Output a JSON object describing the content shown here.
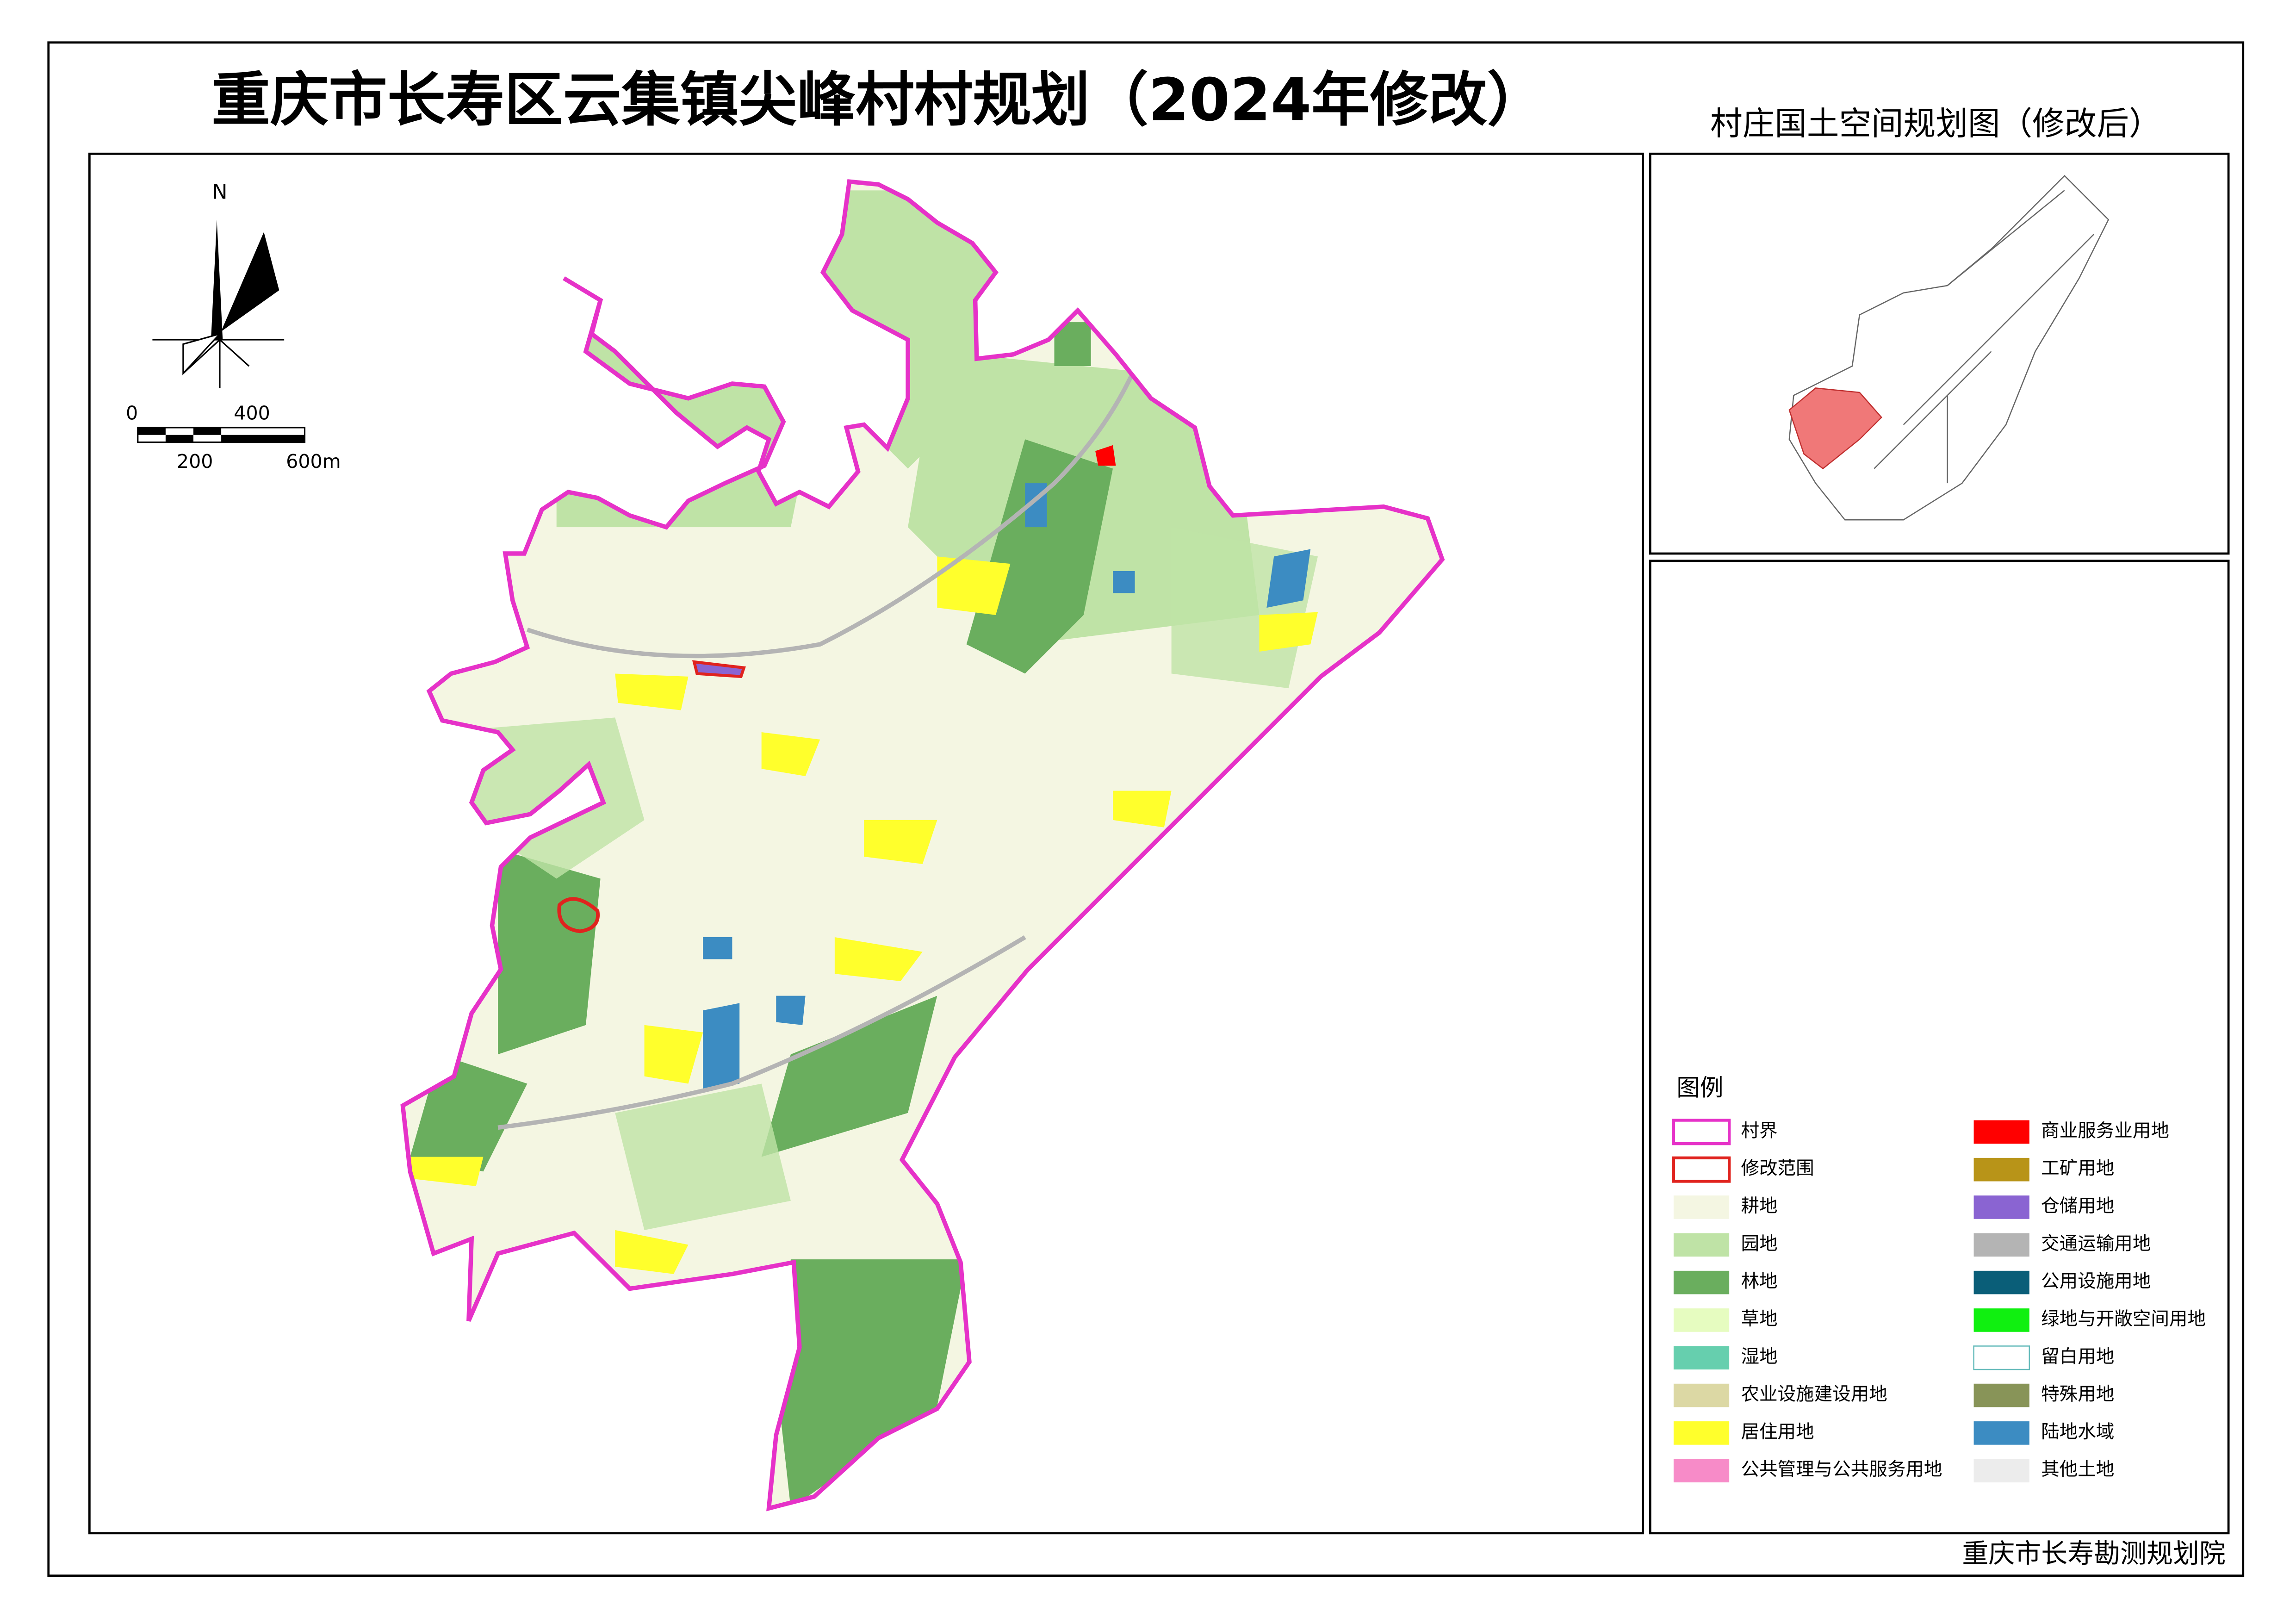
{
  "title": "重庆市长寿区云集镇尖峰村村规划（2024年修改）",
  "subtitle": "村庄国土空间规划图（修改后）",
  "north": "N",
  "scale_bar": {
    "top_labels": [
      "0",
      "400"
    ],
    "bottom_labels": [
      "200",
      "600m"
    ]
  },
  "legend": {
    "title": "图例",
    "boundary_items": [
      {
        "label": "村界",
        "color": "#e632c8"
      },
      {
        "label": "修改范围",
        "color": "#e0231e"
      }
    ],
    "items": [
      {
        "label": "耕地",
        "color": "#f4f6e2"
      },
      {
        "label": "园地",
        "color": "#bfe3a6"
      },
      {
        "label": "林地",
        "color": "#6aae5e"
      },
      {
        "label": "草地",
        "color": "#e6fcc0"
      },
      {
        "label": "湿地",
        "color": "#66cfae"
      },
      {
        "label": "农业设施建设用地",
        "color": "#dcd8a4"
      },
      {
        "label": "居住用地",
        "color": "#ffff2c"
      },
      {
        "label": "公共管理与公共服务用地",
        "color": "#f78bc8"
      },
      {
        "label": "商业服务业用地",
        "color": "#ff0000"
      },
      {
        "label": "工矿用地",
        "color": "#b89418"
      },
      {
        "label": "仓储用地",
        "color": "#8a64d2"
      },
      {
        "label": "交通运输用地",
        "color": "#b4b4b4"
      },
      {
        "label": "公用设施用地",
        "color": "#0a5e78"
      },
      {
        "label": "绿地与开敞空间用地",
        "color": "#10f010"
      },
      {
        "label": "留白用地",
        "color": "#ffffff"
      },
      {
        "label": "特殊用地",
        "color": "#889458"
      },
      {
        "label": "陆地水域",
        "color": "#3c8cc2"
      },
      {
        "label": "其他土地",
        "color": "#ececec"
      }
    ]
  },
  "footer": "重庆市长寿勘测规划院"
}
